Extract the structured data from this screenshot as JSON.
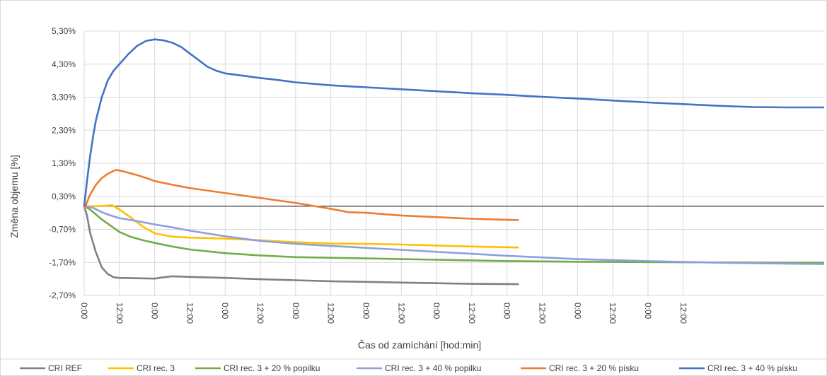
{
  "chart_data": {
    "type": "line",
    "title": "",
    "xlabel": "Čas od zamíchání [hod:min]",
    "ylabel": "Změna objemu [%]",
    "ylim": [
      -2.7,
      5.8
    ],
    "xlim_hours": [
      0,
      252
    ],
    "x_tick_labels": [
      "0:00",
      "12:00",
      "0:00",
      "12:00",
      "0:00",
      "12:00",
      "0:00",
      "12:00",
      "0:00",
      "12:00",
      "0:00",
      "12:00",
      "0:00",
      "12:00",
      "0:00",
      "12:00",
      "0:00",
      "12:00"
    ],
    "y_ticks": [
      5.3,
      4.3,
      3.3,
      2.3,
      1.3,
      0.3,
      -0.7,
      -1.7,
      -2.7
    ],
    "y_tick_labels": [
      "5,30%",
      "4,30%",
      "3,30%",
      "2,30%",
      "1,30%",
      "0,30%",
      "-0,70%",
      "-1,70%",
      "-2,70%"
    ],
    "reference_line_y": 0.0,
    "grid": true,
    "legend_position": "bottom",
    "series": [
      {
        "name": "CRI REF",
        "color": "#808080",
        "points": [
          [
            0,
            0
          ],
          [
            1,
            -0.3
          ],
          [
            2,
            -0.8
          ],
          [
            4,
            -1.4
          ],
          [
            6,
            -1.85
          ],
          [
            8,
            -2.05
          ],
          [
            10,
            -2.15
          ],
          [
            12,
            -2.17
          ],
          [
            18,
            -2.18
          ],
          [
            24,
            -2.19
          ],
          [
            27,
            -2.15
          ],
          [
            30,
            -2.12
          ],
          [
            36,
            -2.14
          ],
          [
            48,
            -2.17
          ],
          [
            60,
            -2.21
          ],
          [
            72,
            -2.24
          ],
          [
            84,
            -2.27
          ],
          [
            96,
            -2.29
          ],
          [
            108,
            -2.31
          ],
          [
            120,
            -2.33
          ],
          [
            132,
            -2.35
          ],
          [
            148,
            -2.36
          ]
        ]
      },
      {
        "name": "CRI rec. 3",
        "color": "#FFC000",
        "points": [
          [
            0,
            0
          ],
          [
            4,
            0
          ],
          [
            8,
            0.02
          ],
          [
            9.5,
            0.03
          ],
          [
            12,
            -0.1
          ],
          [
            16,
            -0.35
          ],
          [
            20,
            -0.62
          ],
          [
            24,
            -0.82
          ],
          [
            30,
            -0.92
          ],
          [
            36,
            -0.95
          ],
          [
            48,
            -0.98
          ],
          [
            60,
            -1.03
          ],
          [
            72,
            -1.09
          ],
          [
            84,
            -1.13
          ],
          [
            96,
            -1.14
          ],
          [
            108,
            -1.16
          ],
          [
            120,
            -1.19
          ],
          [
            132,
            -1.22
          ],
          [
            148,
            -1.25
          ]
        ]
      },
      {
        "name": "CRI rec. 3 + 20 % popilku",
        "color": "#70AD47",
        "points": [
          [
            0,
            0
          ],
          [
            2,
            -0.1
          ],
          [
            6,
            -0.4
          ],
          [
            10,
            -0.65
          ],
          [
            12,
            -0.78
          ],
          [
            16,
            -0.93
          ],
          [
            20,
            -1.03
          ],
          [
            24,
            -1.11
          ],
          [
            30,
            -1.22
          ],
          [
            36,
            -1.31
          ],
          [
            48,
            -1.42
          ],
          [
            60,
            -1.49
          ],
          [
            72,
            -1.54
          ],
          [
            84,
            -1.56
          ],
          [
            96,
            -1.58
          ],
          [
            108,
            -1.6
          ],
          [
            120,
            -1.62
          ],
          [
            132,
            -1.64
          ],
          [
            144,
            -1.66
          ],
          [
            156,
            -1.67
          ],
          [
            168,
            -1.68
          ],
          [
            192,
            -1.69
          ],
          [
            216,
            -1.7
          ],
          [
            240,
            -1.71
          ],
          [
            252,
            -1.71
          ]
        ]
      },
      {
        "name": "CRI rec. 3 + 40 % popilku",
        "color": "#8EA0DC",
        "points": [
          [
            0,
            0
          ],
          [
            3,
            -0.05
          ],
          [
            6,
            -0.18
          ],
          [
            9,
            -0.28
          ],
          [
            12,
            -0.36
          ],
          [
            18,
            -0.45
          ],
          [
            24,
            -0.55
          ],
          [
            30,
            -0.64
          ],
          [
            36,
            -0.74
          ],
          [
            48,
            -0.91
          ],
          [
            60,
            -1.05
          ],
          [
            72,
            -1.14
          ],
          [
            84,
            -1.2
          ],
          [
            96,
            -1.26
          ],
          [
            108,
            -1.32
          ],
          [
            120,
            -1.38
          ],
          [
            132,
            -1.44
          ],
          [
            144,
            -1.5
          ],
          [
            156,
            -1.55
          ],
          [
            168,
            -1.6
          ],
          [
            192,
            -1.66
          ],
          [
            216,
            -1.71
          ],
          [
            240,
            -1.74
          ],
          [
            252,
            -1.75
          ]
        ]
      },
      {
        "name": "CRI rec. 3 + 20 % písku",
        "color": "#ED7D31",
        "points": [
          [
            0,
            -0.1
          ],
          [
            2,
            0.35
          ],
          [
            4,
            0.65
          ],
          [
            6,
            0.85
          ],
          [
            8,
            0.98
          ],
          [
            10,
            1.07
          ],
          [
            11,
            1.1
          ],
          [
            14,
            1.04
          ],
          [
            18,
            0.94
          ],
          [
            22,
            0.83
          ],
          [
            24,
            0.76
          ],
          [
            30,
            0.65
          ],
          [
            36,
            0.55
          ],
          [
            48,
            0.4
          ],
          [
            60,
            0.25
          ],
          [
            72,
            0.1
          ],
          [
            84,
            -0.08
          ],
          [
            90,
            -0.18
          ],
          [
            96,
            -0.2
          ],
          [
            108,
            -0.28
          ],
          [
            120,
            -0.33
          ],
          [
            132,
            -0.38
          ],
          [
            148,
            -0.42
          ]
        ]
      },
      {
        "name": "CRI rec. 3 + 40 % písku",
        "color": "#4472C4",
        "points": [
          [
            0,
            0
          ],
          [
            1,
            0.8
          ],
          [
            2,
            1.5
          ],
          [
            3,
            2.1
          ],
          [
            4,
            2.6
          ],
          [
            6,
            3.3
          ],
          [
            8,
            3.8
          ],
          [
            10,
            4.1
          ],
          [
            12,
            4.3
          ],
          [
            15,
            4.6
          ],
          [
            18,
            4.85
          ],
          [
            21,
            5.0
          ],
          [
            24,
            5.05
          ],
          [
            27,
            5.02
          ],
          [
            30,
            4.95
          ],
          [
            33,
            4.82
          ],
          [
            36,
            4.62
          ],
          [
            39,
            4.42
          ],
          [
            42,
            4.22
          ],
          [
            45,
            4.1
          ],
          [
            48,
            4.02
          ],
          [
            54,
            3.95
          ],
          [
            60,
            3.88
          ],
          [
            66,
            3.82
          ],
          [
            72,
            3.75
          ],
          [
            84,
            3.66
          ],
          [
            96,
            3.6
          ],
          [
            108,
            3.54
          ],
          [
            120,
            3.48
          ],
          [
            132,
            3.42
          ],
          [
            144,
            3.37
          ],
          [
            156,
            3.31
          ],
          [
            168,
            3.26
          ],
          [
            180,
            3.2
          ],
          [
            192,
            3.14
          ],
          [
            204,
            3.09
          ],
          [
            216,
            3.04
          ],
          [
            228,
            3.0
          ],
          [
            240,
            2.99
          ],
          [
            252,
            2.99
          ]
        ]
      }
    ]
  }
}
